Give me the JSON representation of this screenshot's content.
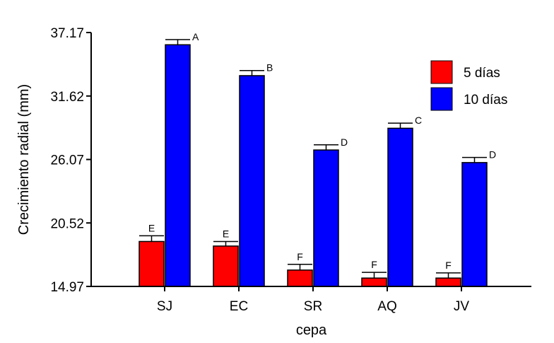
{
  "chart_data": {
    "type": "bar",
    "xlabel": "cepa",
    "ylabel": "Crecimiento radial (mm)",
    "ylim": [
      14.97,
      37.17
    ],
    "yticks": [
      "14.97",
      "20.52",
      "26.07",
      "31.62",
      "37.17"
    ],
    "categories": [
      "SJ",
      "EC",
      "SR",
      "AQ",
      "JV"
    ],
    "legend_position": "top-right",
    "series": [
      {
        "name": "5 días",
        "color": "#ff0000",
        "values": [
          18.9,
          18.5,
          16.4,
          15.7,
          15.7
        ],
        "errors": [
          0.5,
          0.4,
          0.5,
          0.5,
          0.45
        ],
        "labels": [
          "E",
          "E",
          "F",
          "F",
          "F"
        ]
      },
      {
        "name": "10 días",
        "color": "#0000ff",
        "values": [
          36.1,
          33.4,
          26.9,
          28.8,
          25.8
        ],
        "errors": [
          0.45,
          0.45,
          0.45,
          0.45,
          0.45
        ],
        "labels": [
          "A",
          "B",
          "D",
          "C",
          "D"
        ]
      }
    ]
  }
}
